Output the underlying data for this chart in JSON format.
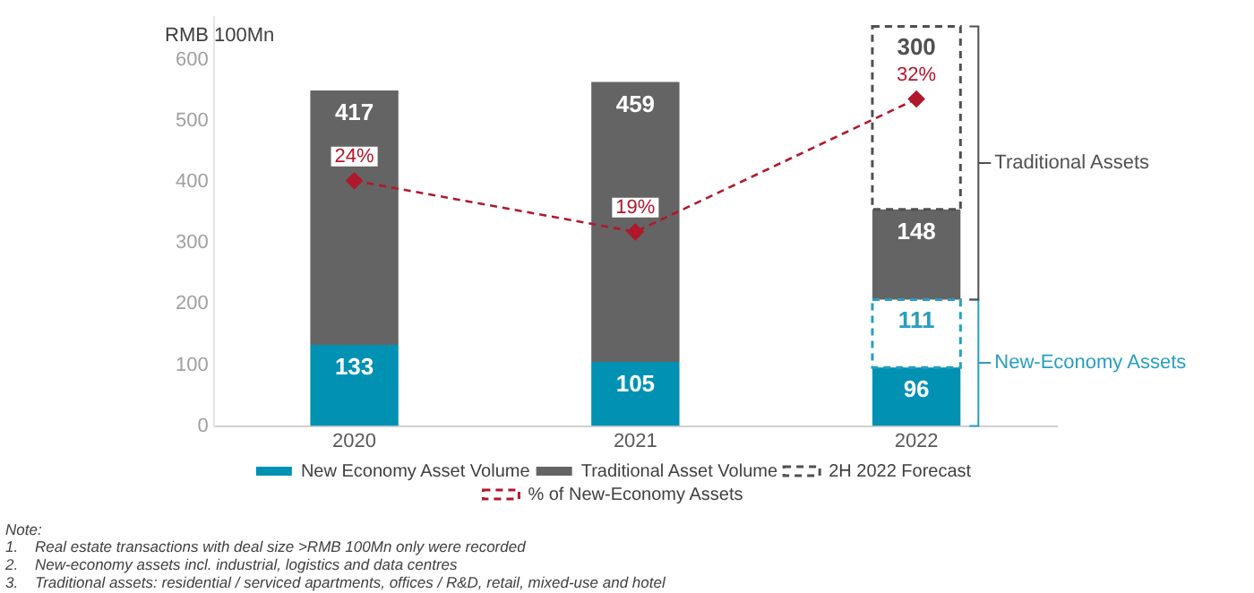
{
  "chart_data": {
    "type": "bar",
    "stacked": true,
    "ylabel": "RMB 100Mn",
    "categories": [
      "2020",
      "2021",
      "2022"
    ],
    "ylim": [
      0,
      670
    ],
    "yticks": [
      0,
      100,
      200,
      300,
      400,
      500,
      600
    ],
    "grid": false,
    "legend": "bottom",
    "data_labels": true,
    "series": [
      {
        "name": "New Economy Asset Volume",
        "color": "#0091b3",
        "values": [
          133,
          105,
          96
        ]
      },
      {
        "color": "#2a9dc0",
        "values": [
          null,
          null,
          111
        ],
        "line_style": "dashed"
      },
      {
        "name": "Traditional Asset Volume",
        "color": "#646464",
        "values": [
          417,
          459,
          148
        ]
      },
      {
        "name": "2H 2022 Forecast",
        "color": "#505050",
        "values": [
          null,
          null,
          300
        ],
        "line_style": "dashed"
      },
      {
        "name": "% of New-Economy Assets",
        "type": "line",
        "axis": "y2",
        "color": "#b0182c",
        "values": [
          24,
          19,
          32
        ],
        "value_labels": [
          "24%",
          "19%",
          "32%"
        ],
        "marker": "diamond",
        "line_style": "dashed"
      }
    ],
    "annotations": [
      "New-Economy Assets",
      "Traditional Assets",
      "Note:",
      "1.    Real estate transactions with deal size >RMB 100Mn only were recorded",
      "2.    New-economy assets incl. industrial, logistics and data centres",
      "3.    Traditional assets: residential / serviced apartments, offices / R&D, retail, mixed-use and hotel"
    ]
  }
}
